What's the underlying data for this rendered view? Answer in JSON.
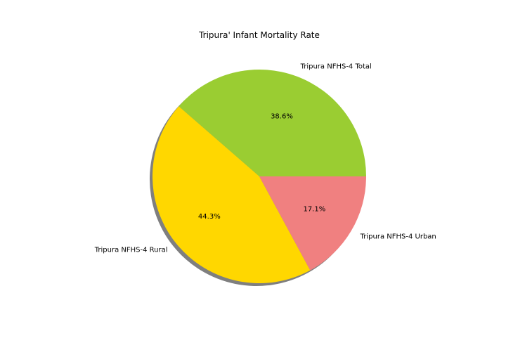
{
  "chart_data": {
    "type": "pie",
    "title": "Tripura' Infant Mortality Rate",
    "labels": [
      "Tripura NFHS-4 Total",
      "Tripura NFHS-4 Rural",
      "Tripura NFHS-4 Urban"
    ],
    "values": [
      38.6,
      44.3,
      17.1
    ],
    "percent_labels": [
      "38.6%",
      "44.3%",
      "17.1%"
    ],
    "colors": [
      "#9acd32",
      "#ffd700",
      "#f08080"
    ],
    "shadow": true,
    "start_angle_deg": 0,
    "direction": "counterclockwise"
  }
}
